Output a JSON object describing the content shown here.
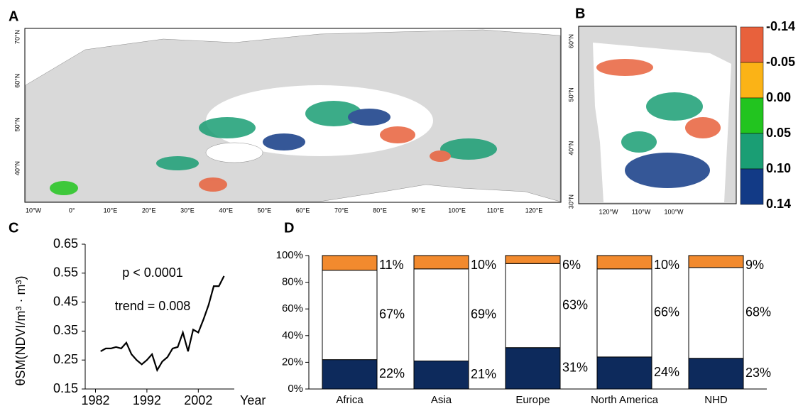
{
  "chart_data": [
    {
      "type": "map",
      "label": "A",
      "lon_labels": [
        "10°W",
        "0°",
        "10°E",
        "20°E",
        "30°E",
        "40°E",
        "50°E",
        "60°E",
        "70°E",
        "80°E",
        "90°E",
        "100°E",
        "110°E",
        "120°E"
      ],
      "lat_labels": [
        "40°N",
        "50°N",
        "60°N",
        "70°N"
      ]
    },
    {
      "type": "map",
      "label": "B",
      "lon_labels": [
        "120°W",
        "110°W",
        "100°W"
      ],
      "lat_labels": [
        "30°N",
        "40°N",
        "50°N",
        "60°N"
      ],
      "colorbar_colors": [
        "#e8613c",
        "#fbb316",
        "#22c41f",
        "#1a9e74",
        "#123a86"
      ],
      "colorbar_ticks": [
        -0.14,
        -0.05,
        {
          "value": 0,
          "label": "0.00"
        },
        0.05,
        {
          "value": 0.1,
          "label": "0.10"
        },
        0.14
      ]
    },
    {
      "type": "line",
      "label": "C",
      "ylabel": "θSM(NDVI/m³ · m³)",
      "xlabel": "Year",
      "annotations": [
        "p < 0.0001",
        "trend = 0.008"
      ],
      "x": [
        1983,
        1984,
        1985,
        1986,
        1987,
        1988,
        1989,
        1990,
        1991,
        1992,
        1993,
        1994,
        1995,
        1996,
        1997,
        1998,
        1999,
        2000,
        2001,
        2002,
        2003,
        2004,
        2005,
        2006,
        2007
      ],
      "values": [
        0.28,
        0.29,
        0.29,
        0.295,
        0.29,
        0.31,
        0.27,
        0.25,
        0.235,
        0.25,
        0.27,
        0.215,
        0.245,
        0.26,
        0.29,
        0.295,
        0.345,
        0.28,
        0.355,
        0.345,
        0.39,
        0.44,
        0.505,
        0.505,
        0.54
      ],
      "color": "#000000",
      "xlim": [
        1980,
        2009
      ],
      "xticks": [
        1982,
        1992,
        2002
      ],
      "ylim": [
        0.15,
        0.65
      ],
      "yticks": [
        0.15,
        0.25,
        0.35,
        0.45,
        0.55,
        0.65
      ]
    },
    {
      "type": "stacked_bar",
      "label": "D",
      "categories": [
        "Africa",
        "Asia",
        "Europe",
        "North America",
        "NHD"
      ],
      "series": [
        {
          "color": "#0d2a5c",
          "values": [
            22,
            21,
            31,
            24,
            23
          ],
          "value_labels": [
            "22%",
            "21%",
            "31%",
            "24%",
            "23%"
          ]
        },
        {
          "color": "#ffffff",
          "values": [
            67,
            69,
            63,
            66,
            68
          ],
          "value_labels": [
            "67%",
            "69%",
            "63%",
            "66%",
            "68%"
          ]
        },
        {
          "color": "#f28a2e",
          "values": [
            11,
            10,
            6,
            10,
            9
          ],
          "value_labels": [
            "11%",
            "10%",
            "6%",
            "10%",
            "9%"
          ]
        }
      ],
      "ylim": [
        0,
        100
      ],
      "yticks": [
        {
          "value": 0,
          "label": "0%"
        },
        {
          "value": 20,
          "label": "20%"
        },
        {
          "value": 40,
          "label": "40%"
        },
        {
          "value": 60,
          "label": "60%"
        },
        {
          "value": 80,
          "label": "80%"
        },
        {
          "value": 100,
          "label": "100%"
        }
      ]
    }
  ]
}
